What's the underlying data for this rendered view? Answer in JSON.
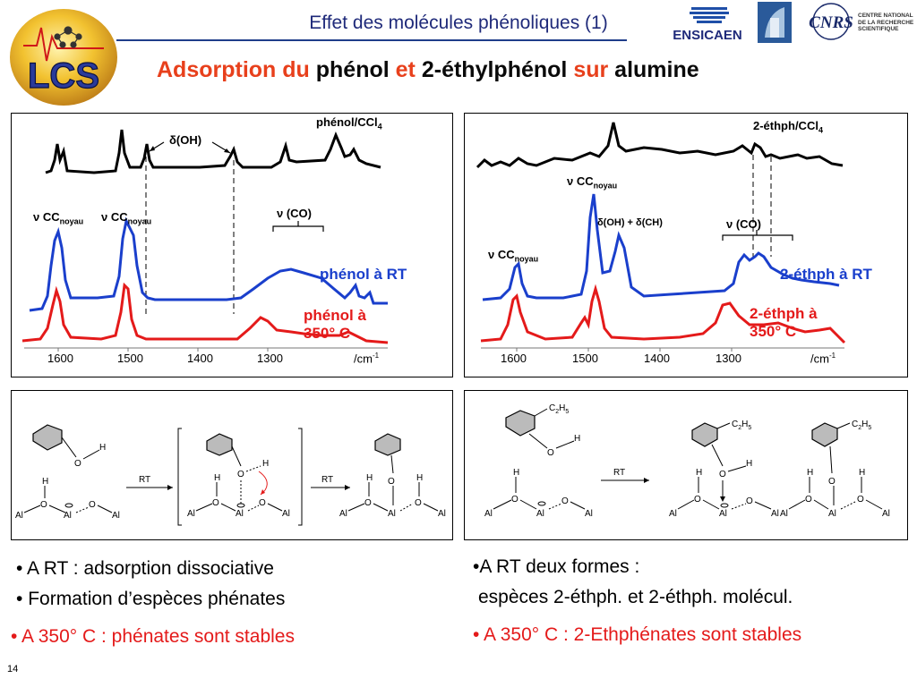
{
  "header": {
    "title": "Effet des molécules phénoliques (1)",
    "subtitle": {
      "p1": "Adsorption du",
      "p2": "phénol",
      "p3": "et",
      "p4": "2-éthylphénol",
      "p5": "sur",
      "p6": "alumine"
    }
  },
  "logos": {
    "lcs": "LCS",
    "ensicaen": "ENSICAEN",
    "unicaen": "Université de Caen Basse-Normandie",
    "cnrs": "CNRS",
    "cnrs_full": [
      "CENTRE NATIONAL",
      "DE LA RECHERCHE",
      "SCIENTIFIQUE"
    ]
  },
  "colors": {
    "red": "#e41a1a",
    "blue": "#1a3fcc",
    "orange": "#e8401c",
    "navy": "#1f2a7a"
  },
  "left_spectrum": {
    "ref_label": "phénol/CCl",
    "ref_sub": "4",
    "oh_label": "δ(OH)",
    "cc1": "ν CC",
    "cc1_sub": "noyau",
    "cc2": "ν CC",
    "cc2_sub": "noyau",
    "co_label": "ν (CO)",
    "rt_label": "phénol à RT",
    "hot_label_1": "phénol à",
    "hot_label_2": "350°  C",
    "ticks": [
      "1600",
      "1500",
      "1400",
      "1300"
    ],
    "unit": "/cm",
    "unit_sup": "-1"
  },
  "right_spectrum": {
    "ref_label": "2-éthph/CCl",
    "ref_sub": "4",
    "cc_top": "ν CC",
    "cc_top_sub": "noyau",
    "cc_left": "ν CC",
    "cc_left_sub": "noyau",
    "oh_ch": "δ(OH) + δ(CH)",
    "co_label": "ν (CO)",
    "rt_label": "2-éthph à RT",
    "hot_label_1": "2-éthph à",
    "hot_label_2": "350°  C",
    "ticks": [
      "1600",
      "1500",
      "1400",
      "1300"
    ],
    "unit": "/cm",
    "unit_sup": "-1"
  },
  "left_scheme": {
    "h": "H",
    "o": "O",
    "al": "Al",
    "rt": "RT"
  },
  "right_scheme": {
    "h": "H",
    "o": "O",
    "al": "Al",
    "rt": "RT",
    "c2h5": "C",
    "c2h5_sub1": "2",
    "c2h5_h": "H",
    "c2h5_sub2": "5"
  },
  "conclusions_left": {
    "b1": "A RT : adsorption dissociative",
    "b2": "Formation d’espèces phénates",
    "b3": "A 350°   C : phénates sont stables"
  },
  "conclusions_right": {
    "b1": "A RT deux formes :",
    "b2": "espèces 2-éthph. et  2-éthph. molécul.",
    "b3": "A 350°   C : 2-Ethphénates sont stables"
  },
  "page_number": "14"
}
